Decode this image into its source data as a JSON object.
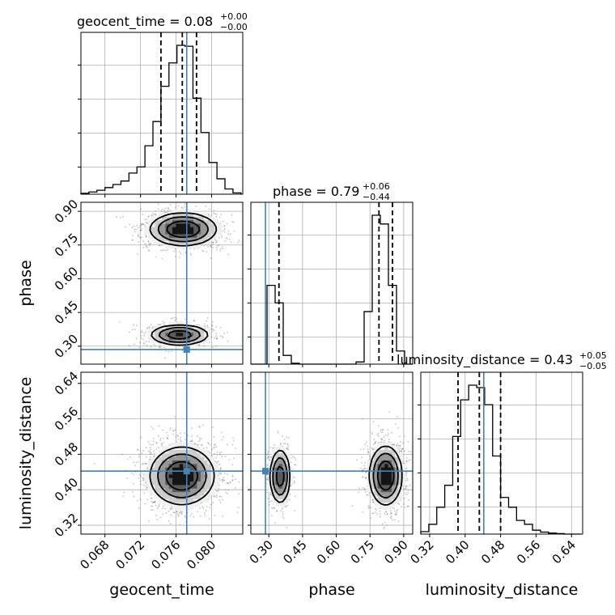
{
  "chart_data": {
    "type": "corner",
    "parameters": [
      "geocent_time",
      "phase",
      "luminosity_distance"
    ],
    "truth_color": "#4682b4",
    "truths": {
      "geocent_time": 0.0772,
      "phase": 0.285,
      "luminosity_distance": 0.442
    },
    "ranges": {
      "geocent_time": [
        0.0653,
        0.0835
      ],
      "phase": [
        0.22,
        0.94
      ],
      "luminosity_distance": [
        0.3,
        0.665
      ]
    },
    "ticks": {
      "geocent_time": {
        "values": [
          0.068,
          0.072,
          0.076,
          0.08
        ],
        "labels": [
          "0.068",
          "0.072",
          "0.076",
          "0.080"
        ]
      },
      "phase": {
        "values": [
          0.3,
          0.45,
          0.6,
          0.75,
          0.9
        ],
        "labels": [
          "0.30",
          "0.45",
          "0.60",
          "0.75",
          "0.90"
        ]
      },
      "luminosity_distance": {
        "values": [
          0.32,
          0.4,
          0.48,
          0.56,
          0.64
        ],
        "labels": [
          "0.32",
          "0.40",
          "0.48",
          "0.56",
          "0.64"
        ]
      }
    },
    "titles": {
      "geocent_time": {
        "text": "geocent_time = 0.08",
        "plus": "+0.00",
        "minus": "−0.00"
      },
      "phase": {
        "text": "phase = 0.79",
        "plus": "+0.06",
        "minus": "−0.44"
      },
      "luminosity_distance": {
        "text": "luminosity_distance = 0.43",
        "plus": "+0.05",
        "minus": "−0.05"
      }
    },
    "quantiles": {
      "geocent_time": [
        0.0743,
        0.0767,
        0.0783
      ],
      "phase": [
        0.345,
        0.79,
        0.85
      ],
      "luminosity_distance": [
        0.384,
        0.432,
        0.48
      ]
    },
    "histograms": {
      "geocent_time": {
        "edges": [
          0.0653,
          0.0662,
          0.0671,
          0.068,
          0.0689,
          0.0698,
          0.0707,
          0.0716,
          0.0725,
          0.0734,
          0.0743,
          0.0752,
          0.0761,
          0.077,
          0.0779,
          0.0788,
          0.0797,
          0.0806,
          0.0815,
          0.0824,
          0.0833
        ],
        "counts": [
          2,
          5,
          9,
          15,
          22,
          30,
          48,
          62,
          110,
          165,
          245,
          298,
          338,
          336,
          218,
          140,
          72,
          35,
          12,
          3
        ]
      },
      "phase": {
        "edges": [
          0.22,
          0.256,
          0.292,
          0.328,
          0.364,
          0.4,
          0.436,
          0.472,
          0.508,
          0.544,
          0.58,
          0.616,
          0.652,
          0.688,
          0.724,
          0.76,
          0.796,
          0.832,
          0.868,
          0.904,
          0.94
        ],
        "counts": [
          0,
          0,
          180,
          140,
          20,
          2,
          0,
          0,
          0,
          0,
          0,
          0,
          0,
          5,
          120,
          340,
          320,
          180,
          30,
          0
        ]
      },
      "luminosity_distance": {
        "edges": [
          0.3,
          0.318,
          0.336,
          0.354,
          0.372,
          0.39,
          0.408,
          0.426,
          0.444,
          0.462,
          0.48,
          0.498,
          0.516,
          0.534,
          0.552,
          0.57,
          0.588,
          0.606,
          0.624,
          0.642,
          0.66
        ],
        "counts": [
          5,
          20,
          55,
          100,
          200,
          275,
          305,
          300,
          265,
          160,
          75,
          55,
          28,
          20,
          8,
          4,
          2,
          1,
          0,
          0
        ]
      }
    },
    "modes": [
      {
        "weight": 0.32,
        "geocent_time": [
          0.0764,
          0.0016
        ],
        "phase": [
          0.35,
          0.022
        ],
        "luminosity_distance": [
          0.43,
          0.03
        ]
      },
      {
        "weight": 0.68,
        "geocent_time": [
          0.0768,
          0.0018
        ],
        "phase": [
          0.82,
          0.035
        ],
        "luminosity_distance": [
          0.432,
          0.032
        ]
      }
    ],
    "grid": true,
    "legend": "none"
  }
}
